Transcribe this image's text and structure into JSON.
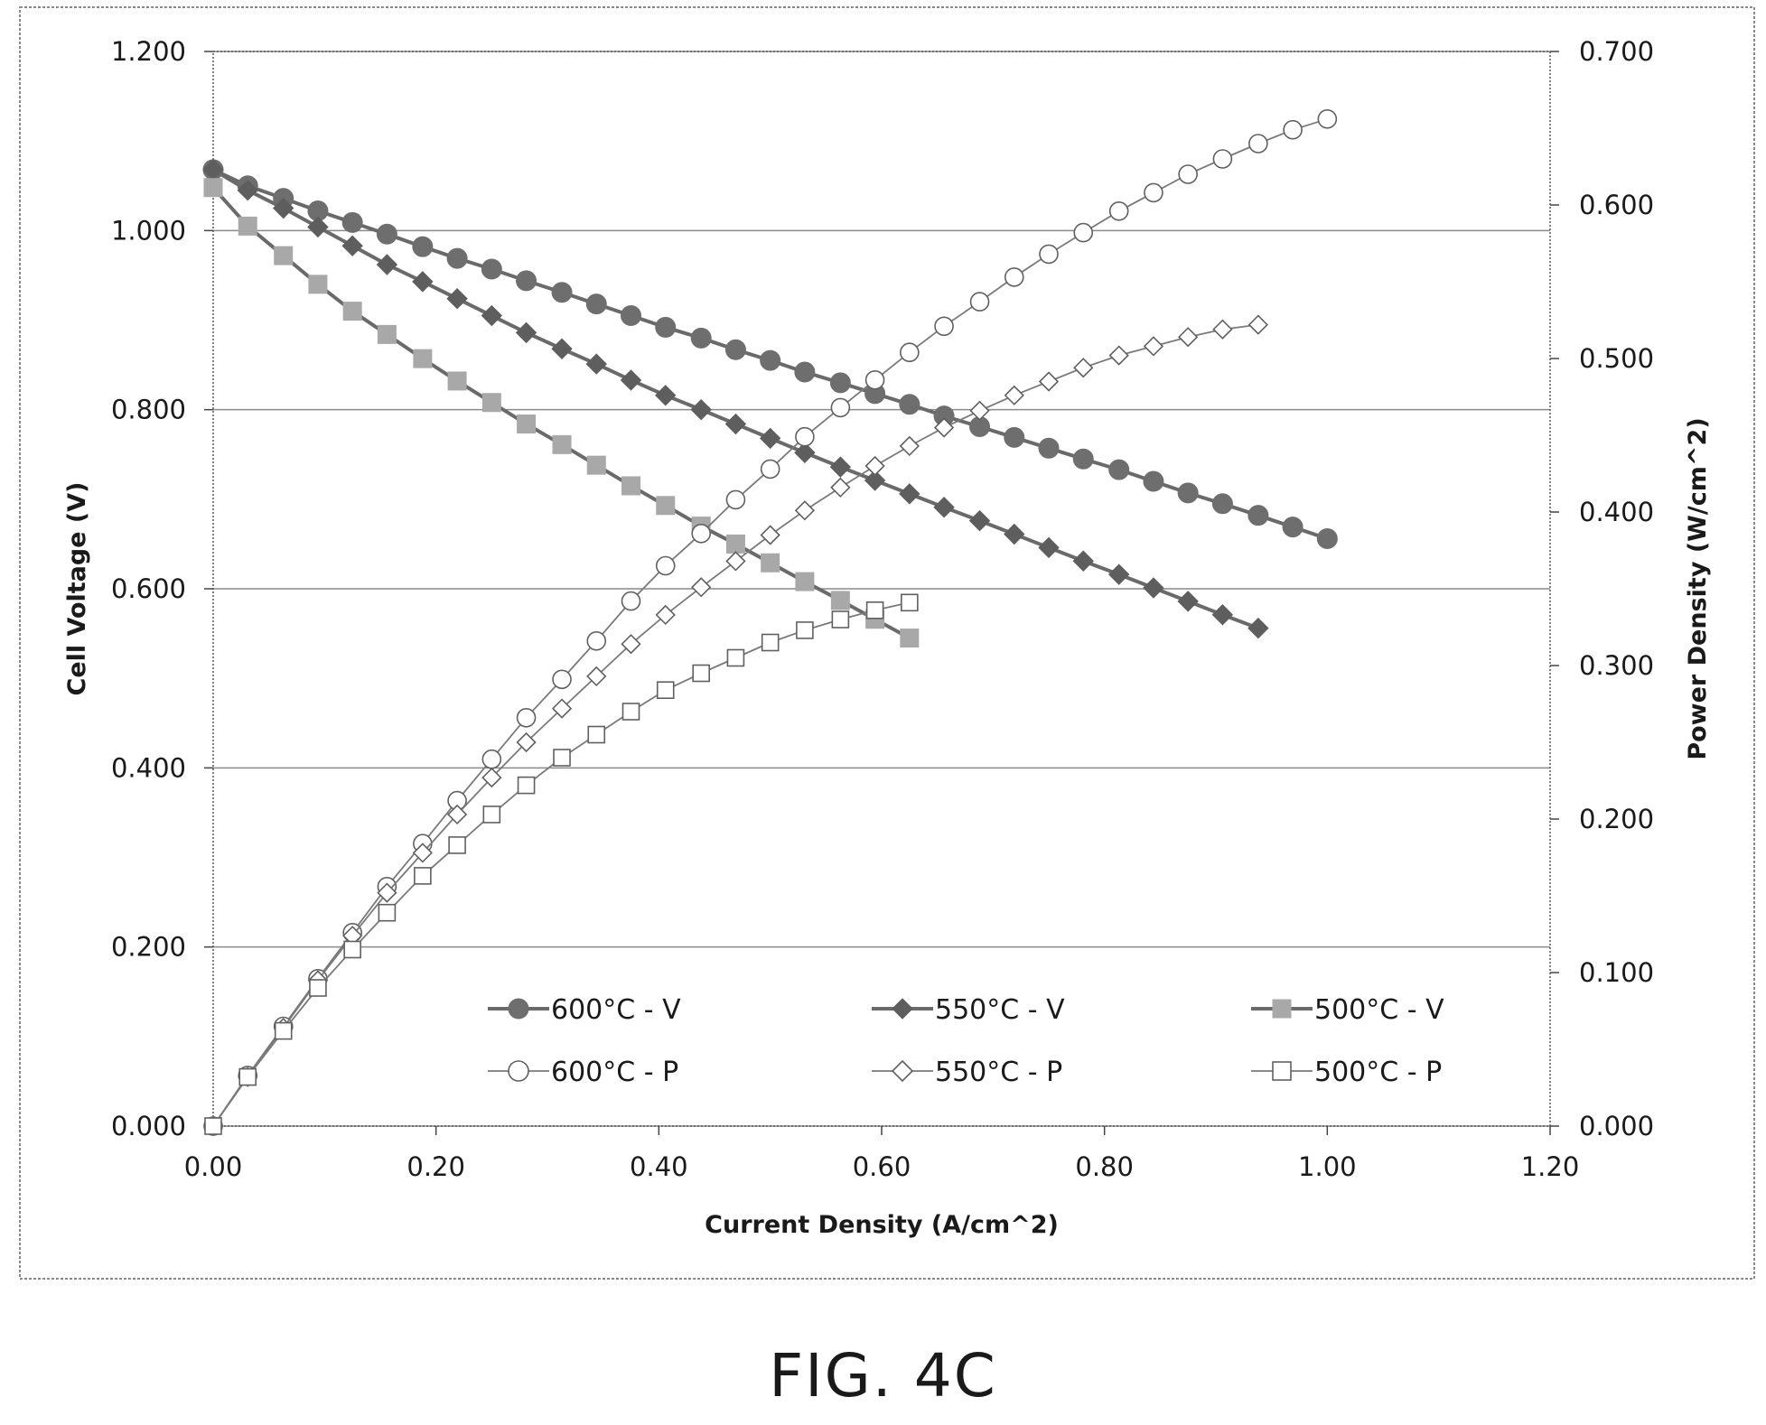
{
  "figure_label": "FIG. 4C",
  "chart_data": {
    "type": "line",
    "xlabel": "Current Density (A/cm^2)",
    "ylabel": "Cell Voltage (V)",
    "y2label": "Power Density (W/cm^2)",
    "xlim": [
      0,
      1.2
    ],
    "ylim": [
      0,
      1.2
    ],
    "y2lim": [
      0,
      0.7
    ],
    "x_ticks": [
      "0.00",
      "0.20",
      "0.40",
      "0.60",
      "0.80",
      "1.00",
      "1.20"
    ],
    "y_ticks": [
      "0.000",
      "0.200",
      "0.400",
      "0.600",
      "0.800",
      "1.000",
      "1.200"
    ],
    "y2_ticks": [
      "0.000",
      "0.100",
      "0.200",
      "0.300",
      "0.400",
      "0.500",
      "0.600",
      "0.700"
    ],
    "grid": "horizontal",
    "legend_position": "bottom-center",
    "series": [
      {
        "name": "600°C - V",
        "axis": "left",
        "marker": "circle",
        "filled": true,
        "color": "#6e6e6e",
        "x": [
          0.0,
          0.031,
          0.063,
          0.094,
          0.125,
          0.156,
          0.188,
          0.219,
          0.25,
          0.281,
          0.313,
          0.344,
          0.375,
          0.406,
          0.438,
          0.469,
          0.5,
          0.531,
          0.563,
          0.594,
          0.625,
          0.656,
          0.688,
          0.719,
          0.75,
          0.781,
          0.813,
          0.844,
          0.875,
          0.906,
          0.938,
          0.969,
          1.0
        ],
        "y": [
          1.068,
          1.05,
          1.036,
          1.022,
          1.009,
          0.996,
          0.982,
          0.969,
          0.957,
          0.944,
          0.931,
          0.918,
          0.905,
          0.892,
          0.88,
          0.867,
          0.855,
          0.842,
          0.83,
          0.818,
          0.806,
          0.793,
          0.781,
          0.769,
          0.757,
          0.745,
          0.733,
          0.72,
          0.707,
          0.695,
          0.682,
          0.669,
          0.656
        ]
      },
      {
        "name": "550°C - V",
        "axis": "left",
        "marker": "diamond",
        "filled": true,
        "color": "#5e5e5e",
        "x": [
          0.0,
          0.031,
          0.063,
          0.094,
          0.125,
          0.156,
          0.188,
          0.219,
          0.25,
          0.281,
          0.313,
          0.344,
          0.375,
          0.406,
          0.438,
          0.469,
          0.5,
          0.531,
          0.563,
          0.594,
          0.625,
          0.656,
          0.688,
          0.719,
          0.75,
          0.781,
          0.813,
          0.844,
          0.875,
          0.906,
          0.938
        ],
        "y": [
          1.068,
          1.045,
          1.025,
          1.004,
          0.983,
          0.962,
          0.943,
          0.924,
          0.905,
          0.886,
          0.868,
          0.851,
          0.833,
          0.816,
          0.8,
          0.784,
          0.768,
          0.752,
          0.736,
          0.721,
          0.706,
          0.691,
          0.676,
          0.661,
          0.646,
          0.631,
          0.616,
          0.601,
          0.586,
          0.571,
          0.556
        ]
      },
      {
        "name": "500°C - V",
        "axis": "left",
        "marker": "square",
        "filled": true,
        "color": "#a8a8a8",
        "x": [
          0.0,
          0.031,
          0.063,
          0.094,
          0.125,
          0.156,
          0.188,
          0.219,
          0.25,
          0.281,
          0.313,
          0.344,
          0.375,
          0.406,
          0.438,
          0.469,
          0.5,
          0.531,
          0.563,
          0.594,
          0.625
        ],
        "y": [
          1.048,
          1.005,
          0.972,
          0.94,
          0.91,
          0.884,
          0.857,
          0.832,
          0.808,
          0.784,
          0.761,
          0.738,
          0.715,
          0.693,
          0.67,
          0.65,
          0.629,
          0.608,
          0.587,
          0.566,
          0.545
        ]
      },
      {
        "name": "600°C - P",
        "axis": "right",
        "marker": "circle",
        "filled": false,
        "color": "#707070",
        "x": [
          0.0,
          0.031,
          0.063,
          0.094,
          0.125,
          0.156,
          0.188,
          0.219,
          0.25,
          0.281,
          0.313,
          0.344,
          0.375,
          0.406,
          0.438,
          0.469,
          0.5,
          0.531,
          0.563,
          0.594,
          0.625,
          0.656,
          0.688,
          0.719,
          0.75,
          0.781,
          0.813,
          0.844,
          0.875,
          0.906,
          0.938,
          0.969,
          1.0
        ],
        "y": [
          0.0,
          0.033,
          0.065,
          0.096,
          0.126,
          0.156,
          0.184,
          0.212,
          0.239,
          0.266,
          0.291,
          0.316,
          0.342,
          0.365,
          0.386,
          0.408,
          0.428,
          0.449,
          0.468,
          0.486,
          0.504,
          0.521,
          0.537,
          0.553,
          0.568,
          0.582,
          0.596,
          0.608,
          0.62,
          0.63,
          0.64,
          0.649,
          0.656
        ]
      },
      {
        "name": "550°C - P",
        "axis": "right",
        "marker": "diamond",
        "filled": false,
        "color": "#707070",
        "x": [
          0.0,
          0.031,
          0.063,
          0.094,
          0.125,
          0.156,
          0.188,
          0.219,
          0.25,
          0.281,
          0.313,
          0.344,
          0.375,
          0.406,
          0.438,
          0.469,
          0.5,
          0.531,
          0.563,
          0.594,
          0.625,
          0.656,
          0.688,
          0.719,
          0.75,
          0.781,
          0.813,
          0.844,
          0.875,
          0.906,
          0.938
        ],
        "y": [
          0.0,
          0.032,
          0.064,
          0.095,
          0.124,
          0.152,
          0.178,
          0.203,
          0.227,
          0.25,
          0.272,
          0.293,
          0.314,
          0.333,
          0.351,
          0.368,
          0.385,
          0.401,
          0.416,
          0.43,
          0.443,
          0.455,
          0.466,
          0.476,
          0.485,
          0.494,
          0.502,
          0.508,
          0.514,
          0.519,
          0.522
        ]
      },
      {
        "name": "500°C - P",
        "axis": "right",
        "marker": "square",
        "filled": false,
        "color": "#909090",
        "x": [
          0.0,
          0.031,
          0.063,
          0.094,
          0.125,
          0.156,
          0.188,
          0.219,
          0.25,
          0.281,
          0.313,
          0.344,
          0.375,
          0.406,
          0.438,
          0.469,
          0.5,
          0.531,
          0.563,
          0.594,
          0.625
        ],
        "y": [
          0.0,
          0.032,
          0.062,
          0.09,
          0.115,
          0.139,
          0.163,
          0.183,
          0.203,
          0.222,
          0.24,
          0.255,
          0.27,
          0.284,
          0.295,
          0.305,
          0.315,
          0.323,
          0.33,
          0.336,
          0.341
        ]
      }
    ]
  }
}
